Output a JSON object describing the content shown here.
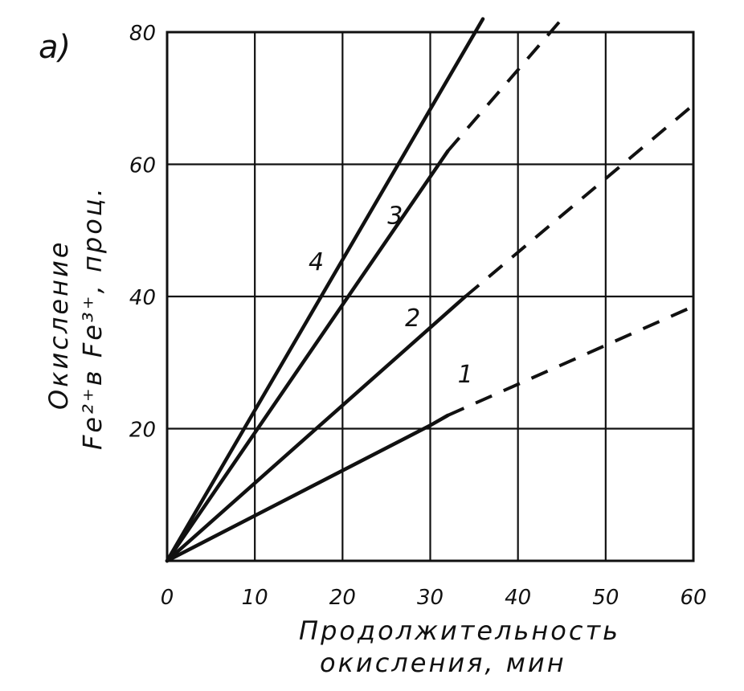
{
  "panel_label": "a)",
  "chart_data": {
    "type": "line",
    "xlabel_lines": [
      "Продолжительность",
      "окисления, мин"
    ],
    "ylabel_lines": [
      "Окисление",
      "Fe²⁺в Fe³⁺, проц."
    ],
    "x_ticks": [
      "0",
      "10",
      "20",
      "30",
      "40",
      "50",
      "60"
    ],
    "y_ticks": [
      "20",
      "40",
      "60",
      "80"
    ],
    "xlim": [
      0,
      60
    ],
    "ylim": [
      0,
      80
    ],
    "grid": true,
    "series": [
      {
        "name": "1",
        "solid": [
          [
            0,
            0
          ],
          [
            30,
            20.5
          ],
          [
            32,
            22
          ]
        ],
        "dashed": [
          [
            32,
            22
          ],
          [
            60,
            38.5
          ]
        ]
      },
      {
        "name": "2",
        "solid": [
          [
            0,
            0
          ],
          [
            34,
            40
          ]
        ],
        "dashed": [
          [
            34,
            40
          ],
          [
            60,
            69
          ]
        ]
      },
      {
        "name": "3",
        "solid": [
          [
            0,
            0
          ],
          [
            32,
            62
          ]
        ],
        "dashed": [
          [
            32,
            62
          ],
          [
            45,
            82
          ]
        ]
      },
      {
        "name": "4",
        "solid": [
          [
            0,
            0
          ],
          [
            36,
            82
          ]
        ],
        "dashed": []
      }
    ],
    "curve_labels": [
      {
        "text": "1",
        "x": 34,
        "y": 27
      },
      {
        "text": "2",
        "x": 28,
        "y": 35.5
      },
      {
        "text": "3",
        "x": 26,
        "y": 51
      },
      {
        "text": "4",
        "x": 17,
        "y": 44
      }
    ]
  }
}
